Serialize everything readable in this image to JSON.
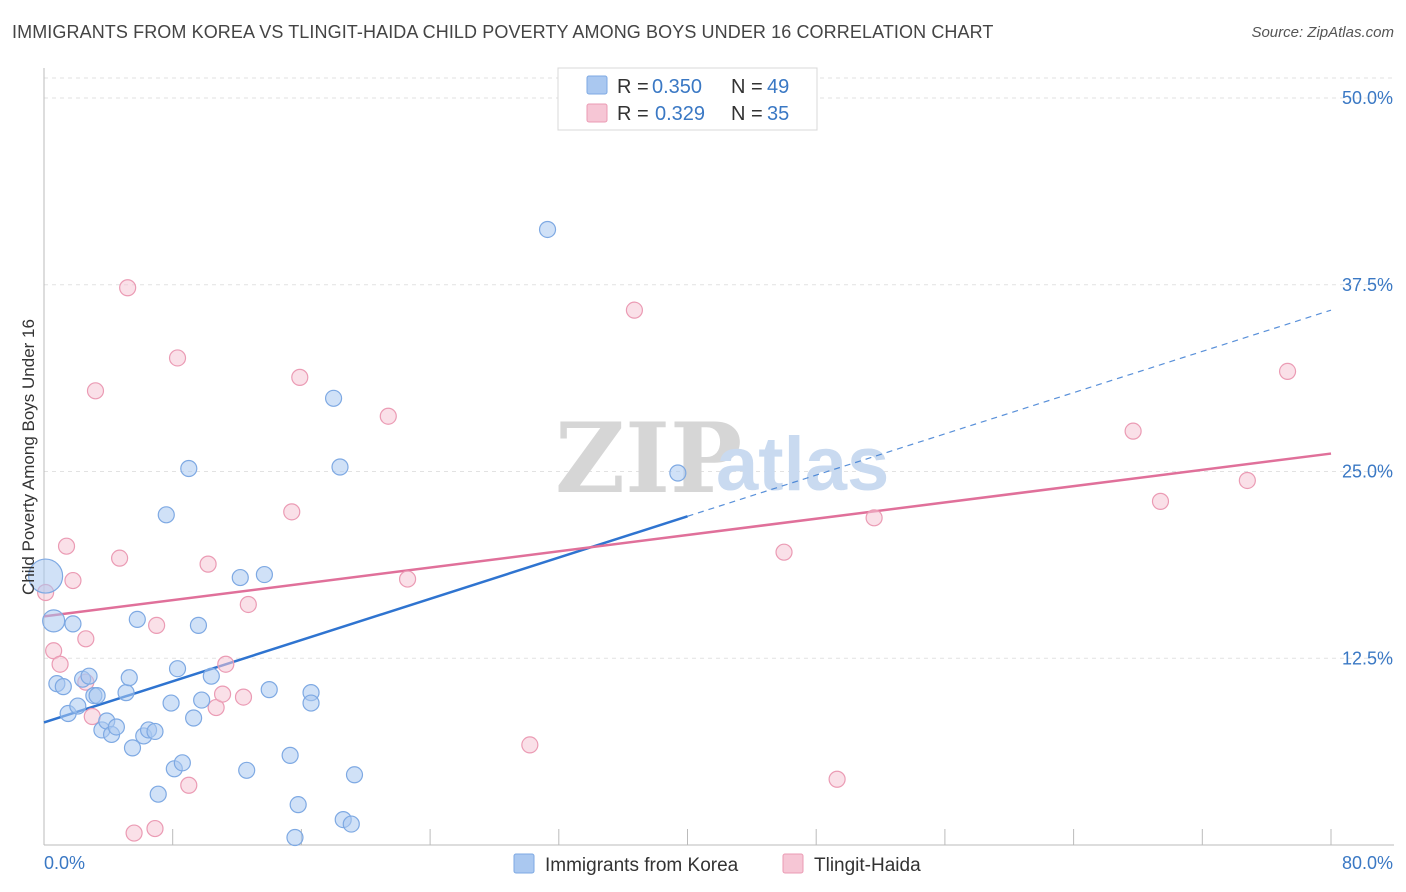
{
  "chart_data": {
    "type": "scatter",
    "title": "IMMIGRANTS FROM KOREA VS TLINGIT-HAIDA CHILD POVERTY AMONG BOYS UNDER 16 CORRELATION CHART",
    "source": "Source: ZipAtlas.com",
    "xlabel": "",
    "ylabel": "Child Poverty Among Boys Under 16",
    "xlim": [
      0,
      80
    ],
    "ylim": [
      0,
      50
    ],
    "x_tick_labels": [
      "0.0%",
      "80.0%"
    ],
    "y_ticks": [
      12.5,
      25.0,
      37.5,
      50.0
    ],
    "y_tick_labels": [
      "12.5%",
      "25.0%",
      "37.5%",
      "50.0%"
    ],
    "watermark": {
      "zip": "ZIP",
      "atlas": "atlas"
    },
    "legend": {
      "r_label": "R =",
      "n_label": "N =",
      "entries": [
        {
          "r": "0.350",
          "n": "49"
        },
        {
          "r": "0.329",
          "n": "35"
        }
      ]
    },
    "series": [
      {
        "name": "Immigrants from Korea",
        "color": "#7ea9e3",
        "fill": "#aac8f0",
        "line_color": "#2f74d0",
        "trend": {
          "x0": 0,
          "y0": 8.2,
          "x1": 40,
          "y1": 22.0,
          "dash_to_x": 80,
          "dash_to_y": 35.8
        },
        "points": [
          [
            0.1,
            18.0
          ],
          [
            0.6,
            15.0
          ],
          [
            0.8,
            10.8
          ],
          [
            1.2,
            10.6
          ],
          [
            1.5,
            8.8
          ],
          [
            1.8,
            14.8
          ],
          [
            2.1,
            9.3
          ],
          [
            2.4,
            11.1
          ],
          [
            2.8,
            11.3
          ],
          [
            3.1,
            10.0
          ],
          [
            3.3,
            10.0
          ],
          [
            3.6,
            7.7
          ],
          [
            3.9,
            8.3
          ],
          [
            4.2,
            7.4
          ],
          [
            4.5,
            7.9
          ],
          [
            5.1,
            10.2
          ],
          [
            5.3,
            11.2
          ],
          [
            5.5,
            6.5
          ],
          [
            5.8,
            15.1
          ],
          [
            6.2,
            7.3
          ],
          [
            6.5,
            7.7
          ],
          [
            6.9,
            7.6
          ],
          [
            7.1,
            3.4
          ],
          [
            7.6,
            22.1
          ],
          [
            7.9,
            9.5
          ],
          [
            8.1,
            5.1
          ],
          [
            8.3,
            11.8
          ],
          [
            8.6,
            5.5
          ],
          [
            9.0,
            25.2
          ],
          [
            9.3,
            8.5
          ],
          [
            9.6,
            14.7
          ],
          [
            9.8,
            9.7
          ],
          [
            10.4,
            11.3
          ],
          [
            12.2,
            17.9
          ],
          [
            12.6,
            5.0
          ],
          [
            13.7,
            18.1
          ],
          [
            14.0,
            10.4
          ],
          [
            15.3,
            6.0
          ],
          [
            15.6,
            0.5
          ],
          [
            15.8,
            2.7
          ],
          [
            16.6,
            10.2
          ],
          [
            16.6,
            9.5
          ],
          [
            18.0,
            29.9
          ],
          [
            18.4,
            25.3
          ],
          [
            18.6,
            1.7
          ],
          [
            19.1,
            1.4
          ],
          [
            19.3,
            4.7
          ],
          [
            31.3,
            41.2
          ],
          [
            39.4,
            24.9
          ]
        ],
        "sizes": {
          "0": 34,
          "1": 22
        }
      },
      {
        "name": "Tlingit-Haida",
        "color": "#eb9bb4",
        "fill": "#f6c6d5",
        "line_color": "#e0709a",
        "trend": {
          "x0": 0,
          "y0": 15.3,
          "x1": 80,
          "y1": 26.2
        },
        "points": [
          [
            0.1,
            16.9
          ],
          [
            0.6,
            13.0
          ],
          [
            1.0,
            12.1
          ],
          [
            1.4,
            20.0
          ],
          [
            1.8,
            17.7
          ],
          [
            2.6,
            10.9
          ],
          [
            2.6,
            13.8
          ],
          [
            3.0,
            8.6
          ],
          [
            3.2,
            30.4
          ],
          [
            4.7,
            19.2
          ],
          [
            5.2,
            37.3
          ],
          [
            5.6,
            0.8
          ],
          [
            6.9,
            1.1
          ],
          [
            7.0,
            14.7
          ],
          [
            8.3,
            32.6
          ],
          [
            9.0,
            4.0
          ],
          [
            10.2,
            18.8
          ],
          [
            10.7,
            9.2
          ],
          [
            11.1,
            10.1
          ],
          [
            11.3,
            12.1
          ],
          [
            12.4,
            9.9
          ],
          [
            12.7,
            16.1
          ],
          [
            15.4,
            22.3
          ],
          [
            15.9,
            31.3
          ],
          [
            21.4,
            28.7
          ],
          [
            22.6,
            17.8
          ],
          [
            30.2,
            6.7
          ],
          [
            36.7,
            35.8
          ],
          [
            46.0,
            19.6
          ],
          [
            49.3,
            4.4
          ],
          [
            51.6,
            21.9
          ],
          [
            67.7,
            27.7
          ],
          [
            69.4,
            23.0
          ],
          [
            74.8,
            24.4
          ],
          [
            77.3,
            31.7
          ]
        ],
        "sizes": {}
      }
    ]
  }
}
